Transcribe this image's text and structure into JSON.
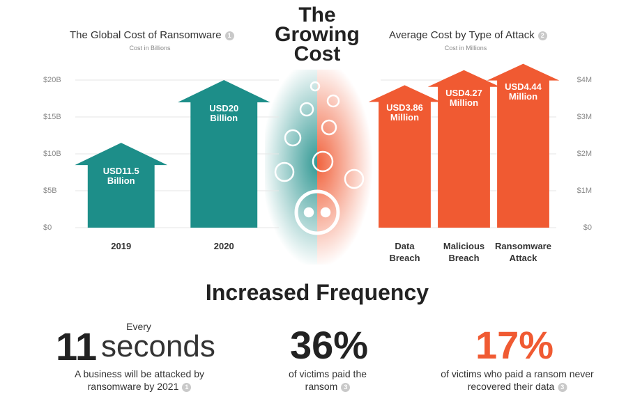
{
  "header": {
    "title": "The Growing Cost"
  },
  "chart_data": [
    {
      "type": "bar",
      "title": "The Global Cost of Ransomware",
      "note": "1",
      "subtitle": "Cost in Billions",
      "categories": [
        "2019",
        "2020"
      ],
      "values": [
        11.5,
        20
      ],
      "value_labels": [
        "USD11.5 Billion",
        "USD20 Billion"
      ],
      "color": "#1d8e89",
      "ylim": [
        0,
        20
      ],
      "yticks": [
        {
          "value": 0,
          "label": "$0"
        },
        {
          "value": 5,
          "label": "$5B"
        },
        {
          "value": 10,
          "label": "$10B"
        },
        {
          "value": 15,
          "label": "$15B"
        },
        {
          "value": 20,
          "label": "$20B"
        }
      ],
      "grid": true,
      "y_axis_side": "left"
    },
    {
      "type": "bar",
      "title": "Average Cost by Type of Attack",
      "note": "2",
      "subtitle": "Cost in Millions",
      "categories": [
        "Data Breach",
        "Malicious Breach",
        "Ransomware Attack"
      ],
      "values": [
        3.86,
        4.27,
        4.44
      ],
      "value_labels": [
        "USD3.86 Million",
        "USD4.27 Million",
        "USD4.44 Million"
      ],
      "color": "#f05a32",
      "ylim": [
        0,
        4
      ],
      "yticks": [
        {
          "value": 0,
          "label": "$0"
        },
        {
          "value": 1,
          "label": "$1M"
        },
        {
          "value": 2,
          "label": "$2M"
        },
        {
          "value": 3,
          "label": "$3M"
        },
        {
          "value": 4,
          "label": "$4M"
        }
      ],
      "grid": true,
      "y_axis_side": "right"
    }
  ],
  "frequency": {
    "title": "Increased Frequency",
    "stats": [
      {
        "prefix": "Every",
        "figure": "11",
        "unit": "seconds",
        "caption": "A business will be attacked by ransomware by 2021",
        "note": "1"
      },
      {
        "figure": "36%",
        "caption": "of victims paid the ransom",
        "note": "3"
      },
      {
        "figure": "17%",
        "caption": "of victims who paid a ransom never recovered their data",
        "note": "3"
      }
    ]
  }
}
